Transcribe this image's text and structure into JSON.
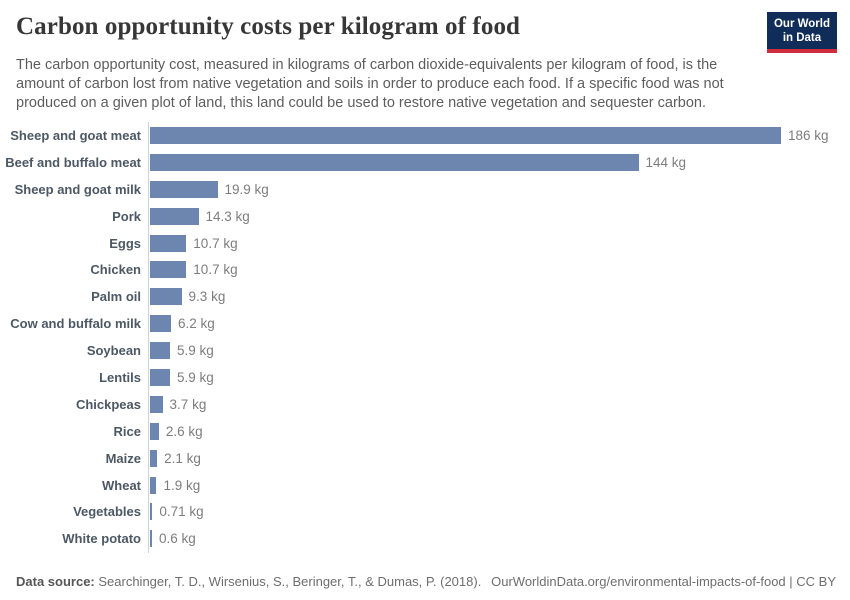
{
  "header": {
    "title": "Carbon opportunity costs per kilogram of food",
    "subtitle": "The carbon opportunity cost, measured in kilograms of carbon dioxide-equivalents per kilogram of food, is the amount of carbon lost from native vegetation and soils in order to produce each food. If a specific food was not produced on a given plot of land, this land could be used to restore native vegetation and sequester carbon.",
    "logo": {
      "line1": "Our World",
      "line2": "in Data"
    }
  },
  "chart_data": {
    "type": "bar",
    "orientation": "horizontal",
    "title": "Carbon opportunity costs per kilogram of food",
    "unit": "kg CO2-equivalents per kilogram of food",
    "xlim": [
      0,
      200
    ],
    "grid": false,
    "legend": "none",
    "categories": [
      "Sheep and goat meat",
      "Beef and buffalo meat",
      "Sheep and goat milk",
      "Pork",
      "Eggs",
      "Chicken",
      "Palm oil",
      "Cow and buffalo milk",
      "Soybean",
      "Lentils",
      "Chickpeas",
      "Rice",
      "Maize",
      "Wheat",
      "Vegetables",
      "White potato"
    ],
    "values": [
      186,
      144,
      19.9,
      14.3,
      10.7,
      10.7,
      9.3,
      6.2,
      5.9,
      5.9,
      3.7,
      2.6,
      2.1,
      1.9,
      0.71,
      0.6
    ],
    "value_labels": [
      "186 kg",
      "144 kg",
      "19.9 kg",
      "14.3 kg",
      "10.7 kg",
      "10.7 kg",
      "9.3 kg",
      "6.2 kg",
      "5.9 kg",
      "5.9 kg",
      "3.7 kg",
      "2.6 kg",
      "2.1 kg",
      "1.9 kg",
      "0.71 kg",
      "0.6 kg"
    ],
    "bar_color": "#6d86af"
  },
  "footer": {
    "source_label": "Data source:",
    "source_text": " Searchinger, T. D., Wirsenius, S., Beringer, T., & Dumas, P. (2018).",
    "attribution": "OurWorldinData.org/environmental-impacts-of-food | CC BY"
  },
  "colors": {
    "bar": "#6d86af",
    "axis": "#cfd4d9",
    "title": "#373737",
    "subtitle": "#5d5d5d",
    "category_label": "#4c5864",
    "value_label": "#7d7d7d",
    "logo_navy": "#102d59",
    "logo_red": "#cf2d3e"
  }
}
